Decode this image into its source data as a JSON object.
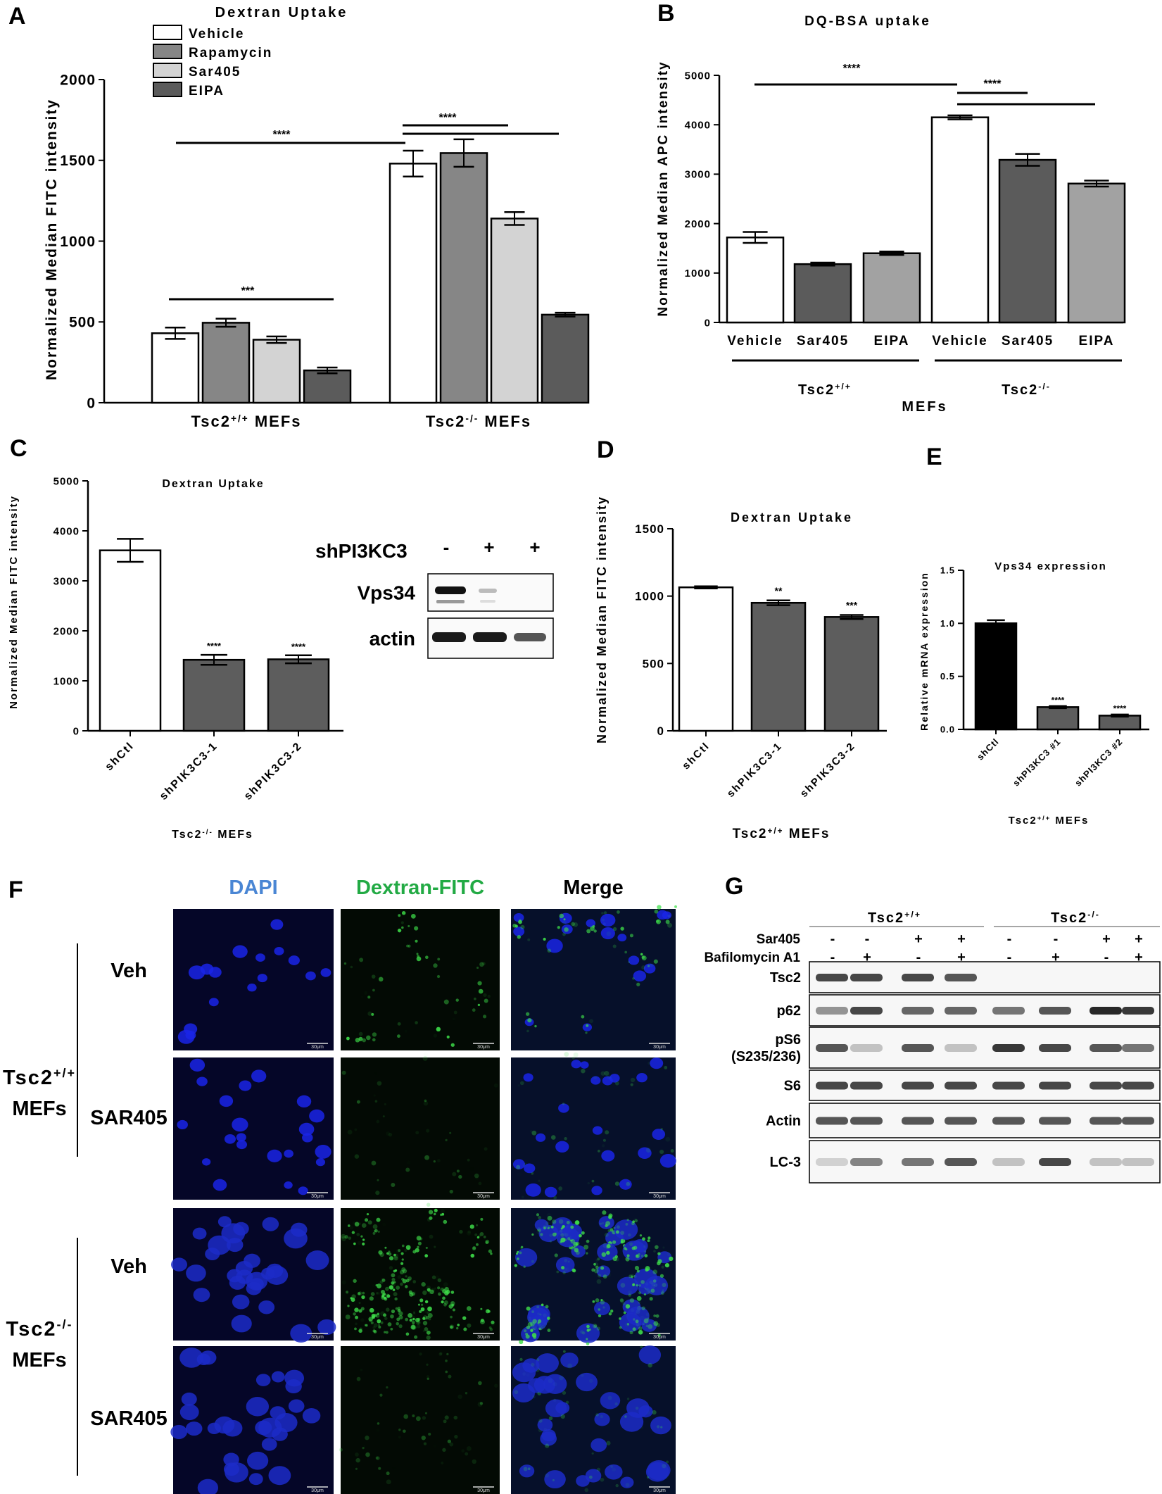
{
  "panel_labels": {
    "A": "A",
    "B": "B",
    "C": "C",
    "D": "D",
    "E": "E",
    "F": "F",
    "G": "G"
  },
  "colors": {
    "vehicle": "#ffffff",
    "rapamycin": "#868686",
    "sar405": "#d3d3d3",
    "eipa": "#5b5b5b",
    "b_sar405": "#5b5b5b",
    "b_eipa": "#a2a2a2",
    "c_sh": "#5d5d5d",
    "e_ctl": "#000000",
    "dapi_label": "#4a86d4",
    "fitc_label": "#22aa44"
  },
  "chart_data": [
    {
      "id": "A",
      "type": "bar",
      "title": "Dextran Uptake",
      "ylabel": "Normalized Median FITC intensity",
      "xlabel": "",
      "ylim": [
        0,
        2000
      ],
      "yticks": [
        "0",
        "500",
        "1000",
        "1500",
        "2000"
      ],
      "groups": [
        "Tsc2",
        "Tsc2"
      ],
      "group_sup": [
        "+/+",
        "-/-"
      ],
      "group_suffix": [
        "MEFs",
        "MEFs"
      ],
      "legend": [
        "Vehicle",
        "Rapamycin",
        "Sar405",
        "EIPA"
      ],
      "series": [
        {
          "name": "Vehicle",
          "values": [
            430,
            1480
          ],
          "err": [
            35,
            80
          ]
        },
        {
          "name": "Rapamycin",
          "values": [
            495,
            1545
          ],
          "err": [
            25,
            85
          ]
        },
        {
          "name": "Sar405",
          "values": [
            390,
            1140
          ],
          "err": [
            20,
            40
          ]
        },
        {
          "name": "EIPA",
          "values": [
            200,
            545
          ],
          "err": [
            18,
            12
          ]
        }
      ],
      "sig": [
        "****",
        "****",
        "***"
      ]
    },
    {
      "id": "B",
      "type": "bar",
      "title": "DQ-BSA uptake",
      "ylabel": "Normalized Median APC intensity",
      "ylim": [
        0,
        5000
      ],
      "yticks": [
        "0",
        "1000",
        "2000",
        "3000",
        "4000",
        "5000"
      ],
      "categories": [
        "Vehicle",
        "Sar405",
        "EIPA",
        "Vehicle",
        "Sar405",
        "EIPA"
      ],
      "values": [
        1720,
        1180,
        1400,
        4150,
        3290,
        2810
      ],
      "err": [
        110,
        30,
        35,
        40,
        120,
        60
      ],
      "groups": [
        "Tsc2",
        "Tsc2"
      ],
      "group_sup": [
        "+/+",
        "-/-"
      ],
      "sublabel": "MEFs",
      "sig": [
        "****",
        "****"
      ]
    },
    {
      "id": "C",
      "type": "bar",
      "title": "Dextran Uptake",
      "ylabel": "Normalized Median FITC intensity",
      "ylim": [
        0,
        5000
      ],
      "yticks": [
        "0",
        "1000",
        "2000",
        "3000",
        "4000",
        "5000"
      ],
      "categories": [
        "shCtl",
        "shPIK3C3-1",
        "shPIK3C3-2"
      ],
      "values": [
        3610,
        1420,
        1430
      ],
      "err": [
        230,
        100,
        80
      ],
      "sig": [
        "",
        "****",
        "****"
      ],
      "xgroup": "Tsc2",
      "xgroup_sup": "-/-",
      "xgroup_suffix": "MEFs"
    },
    {
      "id": "D",
      "type": "bar",
      "title": "Dextran Uptake",
      "ylabel": "Normalized Median FITC intensity",
      "ylim": [
        0,
        1500
      ],
      "yticks": [
        "0",
        "500",
        "1000",
        "1500"
      ],
      "categories": [
        "shCtl",
        "shPIK3C3-1",
        "shPIK3C3-2"
      ],
      "values": [
        1065,
        950,
        845
      ],
      "err": [
        8,
        18,
        15
      ],
      "sig": [
        "",
        "**",
        "***"
      ],
      "xgroup": "Tsc2",
      "xgroup_sup": "+/+",
      "xgroup_suffix": "MEFs"
    },
    {
      "id": "E",
      "type": "bar",
      "title": "Vps34 expression",
      "ylabel": "Relative mRNA expression",
      "ylim": [
        0,
        1.5
      ],
      "yticks": [
        "0.0",
        "0.5",
        "1.0",
        "1.5"
      ],
      "categories": [
        "shCtl",
        "shPI3KC3 #1",
        "shPI3KC3 #2"
      ],
      "values": [
        1.0,
        0.21,
        0.13
      ],
      "err": [
        0.03,
        0.01,
        0.01
      ],
      "sig": [
        "",
        "****",
        "****"
      ],
      "xgroup": "Tsc2",
      "xgroup_sup": "+/+",
      "xgroup_suffix": "MEFs"
    }
  ],
  "blot_c": {
    "title": "shPI3KC3",
    "lanes": [
      "-",
      "+",
      "+"
    ],
    "rows": [
      "Vps34",
      "actin"
    ]
  },
  "panel_f": {
    "columns": [
      "DAPI",
      "Dextran-FITC",
      "Merge"
    ],
    "groups": [
      {
        "label": "Tsc2",
        "sup": "+/+",
        "suffix": "MEFs",
        "rows": [
          "Veh",
          "SAR405"
        ]
      },
      {
        "label": "Tsc2",
        "sup": "-/-",
        "suffix": "MEFs",
        "rows": [
          "Veh",
          "SAR405"
        ]
      }
    ],
    "scalebar": "30μm"
  },
  "panel_g": {
    "groups": [
      {
        "label": "Tsc2",
        "sup": "+/+"
      },
      {
        "label": "Tsc2",
        "sup": "-/-"
      }
    ],
    "treatments": [
      {
        "name": "Sar405",
        "lanes": [
          "-",
          "-",
          "+",
          "+",
          "-",
          "-",
          "+",
          "+"
        ]
      },
      {
        "name": "Bafilomycin A1",
        "lanes": [
          "-",
          "+",
          "-",
          "+",
          "-",
          "+",
          "-",
          "+"
        ]
      }
    ],
    "rows": [
      "Tsc2",
      "p62",
      "pS6\n(S235/236)",
      "S6",
      "Actin",
      "LC-3"
    ]
  }
}
